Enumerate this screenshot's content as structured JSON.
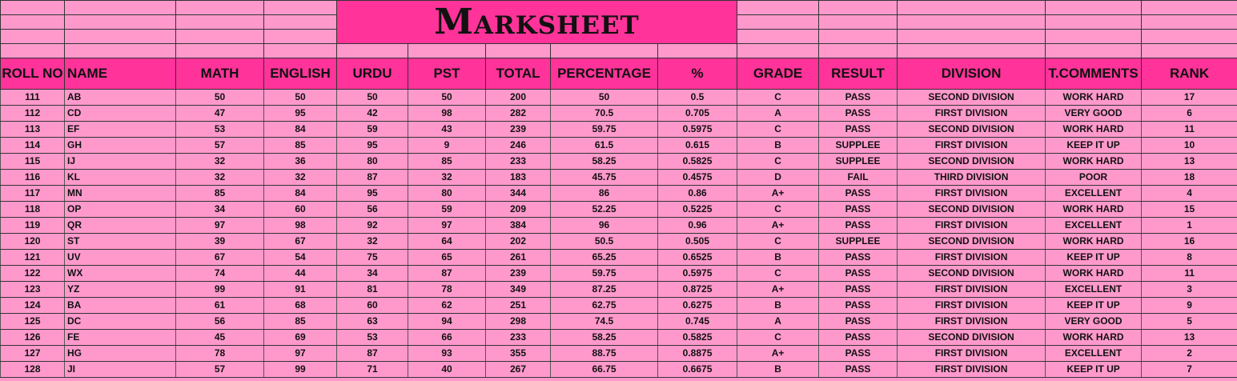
{
  "sheet": {
    "title": "Marksheet",
    "headers": [
      "ROLL NO",
      "NAME",
      "MATH",
      "ENGLISH",
      "URDU",
      "PST",
      "TOTAL",
      "PERCENTAGE",
      "%",
      "GRADE",
      "RESULT",
      "DIVISION",
      "T.COMMENTS",
      "RANK"
    ],
    "rows": [
      [
        "111",
        "AB",
        "50",
        "50",
        "50",
        "50",
        "200",
        "50",
        "0.5",
        "C",
        "PASS",
        "SECOND DIVISION",
        "WORK HARD",
        "17"
      ],
      [
        "112",
        "CD",
        "47",
        "95",
        "42",
        "98",
        "282",
        "70.5",
        "0.705",
        "A",
        "PASS",
        "FIRST DIVISION",
        "VERY GOOD",
        "6"
      ],
      [
        "113",
        "EF",
        "53",
        "84",
        "59",
        "43",
        "239",
        "59.75",
        "0.5975",
        "C",
        "PASS",
        "SECOND DIVISION",
        "WORK HARD",
        "11"
      ],
      [
        "114",
        "GH",
        "57",
        "85",
        "95",
        "9",
        "246",
        "61.5",
        "0.615",
        "B",
        "SUPPLEE",
        "FIRST DIVISION",
        "KEEP IT UP",
        "10"
      ],
      [
        "115",
        "IJ",
        "32",
        "36",
        "80",
        "85",
        "233",
        "58.25",
        "0.5825",
        "C",
        "SUPPLEE",
        "SECOND DIVISION",
        "WORK HARD",
        "13"
      ],
      [
        "116",
        "KL",
        "32",
        "32",
        "87",
        "32",
        "183",
        "45.75",
        "0.4575",
        "D",
        "FAIL",
        "THIRD DIVISION",
        "POOR",
        "18"
      ],
      [
        "117",
        "MN",
        "85",
        "84",
        "95",
        "80",
        "344",
        "86",
        "0.86",
        "A+",
        "PASS",
        "FIRST DIVISION",
        "EXCELLENT",
        "4"
      ],
      [
        "118",
        "OP",
        "34",
        "60",
        "56",
        "59",
        "209",
        "52.25",
        "0.5225",
        "C",
        "PASS",
        "SECOND DIVISION",
        "WORK HARD",
        "15"
      ],
      [
        "119",
        "QR",
        "97",
        "98",
        "92",
        "97",
        "384",
        "96",
        "0.96",
        "A+",
        "PASS",
        "FIRST DIVISION",
        "EXCELLENT",
        "1"
      ],
      [
        "120",
        "ST",
        "39",
        "67",
        "32",
        "64",
        "202",
        "50.5",
        "0.505",
        "C",
        "SUPPLEE",
        "SECOND DIVISION",
        "WORK HARD",
        "16"
      ],
      [
        "121",
        "UV",
        "67",
        "54",
        "75",
        "65",
        "261",
        "65.25",
        "0.6525",
        "B",
        "PASS",
        "FIRST DIVISION",
        "KEEP IT UP",
        "8"
      ],
      [
        "122",
        "WX",
        "74",
        "44",
        "34",
        "87",
        "239",
        "59.75",
        "0.5975",
        "C",
        "PASS",
        "SECOND DIVISION",
        "WORK HARD",
        "11"
      ],
      [
        "123",
        "YZ",
        "99",
        "91",
        "81",
        "78",
        "349",
        "87.25",
        "0.8725",
        "A+",
        "PASS",
        "FIRST DIVISION",
        "EXCELLENT",
        "3"
      ],
      [
        "124",
        "BA",
        "61",
        "68",
        "60",
        "62",
        "251",
        "62.75",
        "0.6275",
        "B",
        "PASS",
        "FIRST DIVISION",
        "KEEP IT UP",
        "9"
      ],
      [
        "125",
        "DC",
        "56",
        "85",
        "63",
        "94",
        "298",
        "74.5",
        "0.745",
        "A",
        "PASS",
        "FIRST DIVISION",
        "VERY GOOD",
        "5"
      ],
      [
        "126",
        "FE",
        "45",
        "69",
        "53",
        "66",
        "233",
        "58.25",
        "0.5825",
        "C",
        "PASS",
        "SECOND DIVISION",
        "WORK HARD",
        "13"
      ],
      [
        "127",
        "HG",
        "78",
        "97",
        "87",
        "93",
        "355",
        "88.75",
        "0.8875",
        "A+",
        "PASS",
        "FIRST DIVISION",
        "EXCELLENT",
        "2"
      ],
      [
        "128",
        "JI",
        "57",
        "99",
        "71",
        "40",
        "267",
        "66.75",
        "0.6675",
        "B",
        "PASS",
        "FIRST DIVISION",
        "KEEP IT UP",
        "7"
      ]
    ]
  }
}
